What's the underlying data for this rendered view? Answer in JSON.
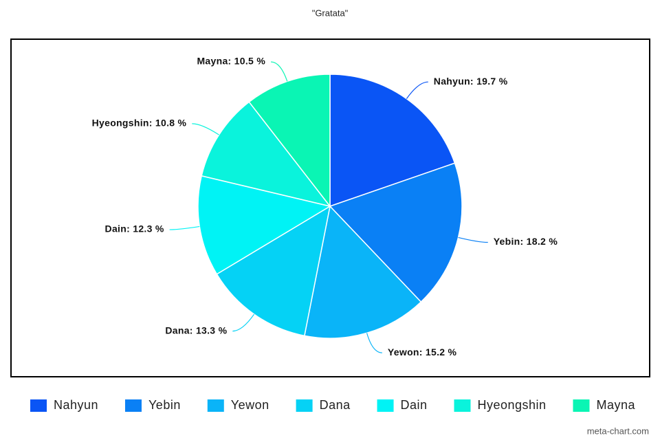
{
  "chart_data": {
    "type": "pie",
    "title": "\"Gratata\"",
    "categories": [
      "Nahyun",
      "Yebin",
      "Yewon",
      "Dana",
      "Dain",
      "Hyeongshin",
      "Mayna"
    ],
    "values": [
      19.7,
      18.2,
      15.2,
      13.3,
      12.3,
      10.8,
      10.5
    ],
    "value_labels": [
      "Nahyun: 19.7 %",
      "Yebin: 18.2 %",
      "Yewon: 15.2 %",
      "Dana: 13.3 %",
      "Dain: 12.3 %",
      "Hyeongshin: 10.8 %",
      "Mayna: 10.5 %"
    ],
    "colors": [
      "#0a55f5",
      "#0a80f5",
      "#0ab4f8",
      "#05d2f5",
      "#00f3f5",
      "#0af3dc",
      "#0af5b4"
    ],
    "legend": "bottom",
    "watermark": "meta-chart.com"
  }
}
